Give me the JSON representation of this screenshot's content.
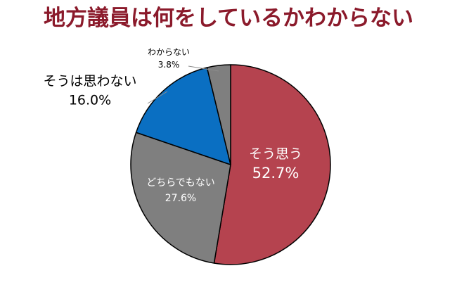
{
  "chart_data": {
    "type": "pie",
    "title": "地方議員は何をしているかわからない",
    "slices": [
      {
        "label": "そう思う",
        "value": 52.7,
        "value_label": "52.7%",
        "color": "#b5434f",
        "label_position": "inside",
        "text_color": "#ffffff"
      },
      {
        "label": "どちらでもない",
        "value": 27.6,
        "value_label": "27.6%",
        "color": "#7f7f7f",
        "label_position": "inside",
        "text_color": "#ffffff"
      },
      {
        "label": "そうは思わない",
        "value": 16.0,
        "value_label": "16.0%",
        "color": "#0a6fc2",
        "label_position": "outside",
        "text_color": "#000000"
      },
      {
        "label": "わからない",
        "value": 3.8,
        "value_label": "3.8%",
        "color": "#7f7f7f",
        "label_position": "outside",
        "text_color": "#000000"
      }
    ],
    "start_angle": "top",
    "direction": "clockwise",
    "legend": "none"
  },
  "colors": {
    "title": "#8b1a2b",
    "slice_border": "#000000",
    "leader_line": "#8c8c8c"
  }
}
